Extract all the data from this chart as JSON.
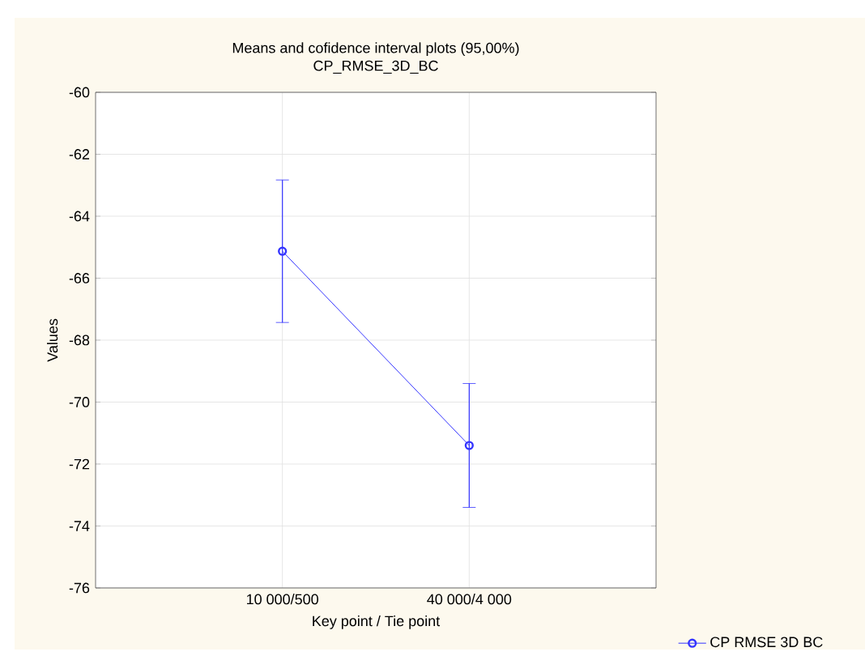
{
  "chart_data": {
    "type": "line",
    "title": "Means and cofidence interval plots (95,00%)",
    "subtitle": "CP_RMSE_3D_BC",
    "categories": [
      "10 000/500",
      "40 000/4 000"
    ],
    "series": [
      {
        "name": "CP RMSE 3D BC",
        "color": "#3333ff",
        "values": [
          -65.13,
          -71.4
        ],
        "errors": [
          2.3,
          2.0
        ]
      }
    ],
    "xlabel": "Key point / Tie point",
    "ylabel": "Values",
    "ylim": [
      -76,
      -60
    ],
    "yticks": [
      -76,
      -74,
      -72,
      -70,
      -68,
      -66,
      -64,
      -62,
      -60
    ],
    "grid": true,
    "legend": "bottom right",
    "marker": "circle",
    "line_style": "solid"
  }
}
